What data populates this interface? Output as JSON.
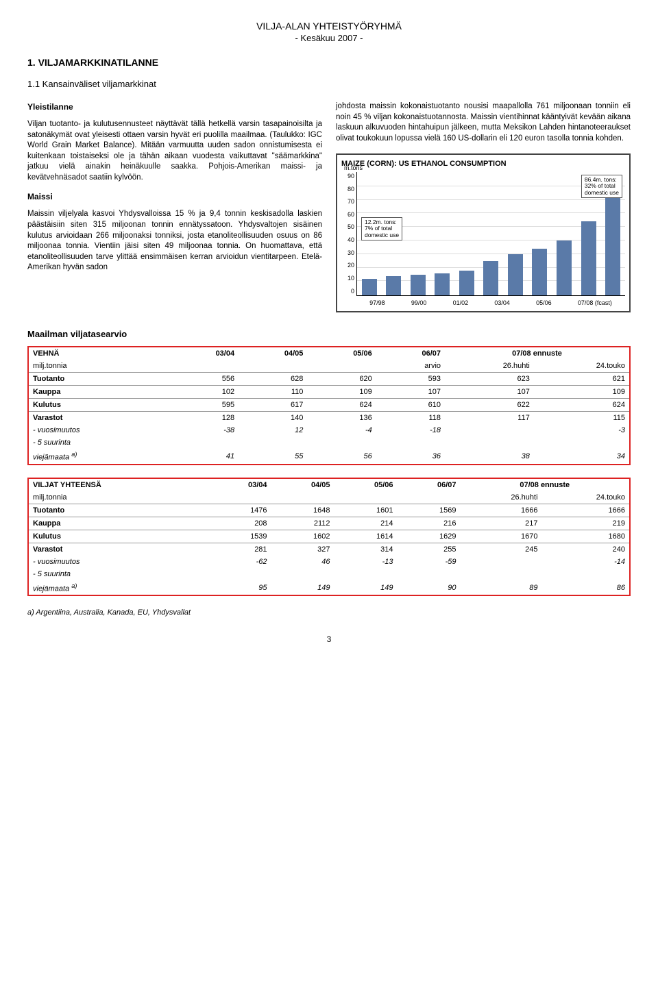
{
  "header": {
    "title": "VILJA-ALAN YHTEISTYÖRYHMÄ",
    "subtitle": "- Kesäkuu 2007 -"
  },
  "sec1": {
    "title": "1. VILJAMARKKINATILANNE",
    "sub": "1.1 Kansainväliset viljamarkkinat",
    "yl_h": "Yleistilanne",
    "p1": "Viljan tuotanto- ja kulutusennusteet näyttävät tällä hetkellä varsin tasapainoisilta ja satonäkymät ovat yleisesti ottaen varsin hyvät eri puolilla maa­ilmaa. (Taulukko: IGC World Grain Market Balance). Mitään varmuutta uuden sadon onnistumisesta ei kuitenkaan toistaiseksi ole ja tähän aikaan vuodesta vaikuttavat \"säämarkkina\" jatkuu vielä ainakin heinäkuulle saakka. Pohjois-Amerikan maissi- ja kevätvehnäsadot saatiin kylvöön.",
    "maissi_h": "Maissi",
    "p2": "Maissin viljelyala kasvoi Yhdysvalloissa 15 % ja 9,4 tonnin keskisadolla laskien päästäisiin siten 315 miljoonan tonnin ennätyssatoon. Yhdysvaltojen sisäinen kulutus arvioidaan 266 miljoonaksi tonniksi, josta etanoliteollisuuden osuus on 86 miljoonaa tonnia. Vientiin jäisi siten 49 miljoonaa tonnia. On huomattava, että etanoliteollisuuden tarve ylittää ensimmäisen kerran arvioidun vientitarpeen. Etelä-Amerikan hyvän sadon",
    "p3": "johdosta maissin kokonaistuotanto nousisi maapallolla 761 miljoonaan tonniin eli noin 45 % viljan kokonaistuotannosta. Maissin vientihinnat kääntyivät kevään aikana laskuun alkuvuoden hintahuipun jälkeen, mutta Meksikon Lahden hintanoteeraukset olivat toukokuun lopussa vielä 160 US-dollarin eli 120 euron tasolla tonnia kohden."
  },
  "chart": {
    "title": "MAIZE (CORN): US ETHANOL CONSUMPTION",
    "unit": "m.tons",
    "annot1_l1": "86.4m. tons:",
    "annot1_l2": "32% of total",
    "annot1_l3": "domestic use",
    "annot2_l1": "12.2m. tons:",
    "annot2_l2": "7% of total",
    "annot2_l3": "domestic use",
    "y": [
      "90",
      "80",
      "70",
      "60",
      "50",
      "40",
      "30",
      "20",
      "10",
      "0"
    ],
    "x": [
      "97/98",
      "99/00",
      "01/02",
      "03/04",
      "05/06",
      "07/08 (fcast)"
    ],
    "bar_color": "#5a7aa8",
    "values": [
      12,
      14,
      15,
      16,
      18,
      25,
      30,
      34,
      40,
      54,
      86
    ]
  },
  "tables_heading": "Maailman viljatasearvio",
  "t1": {
    "name": "VEHNÄ",
    "unit": "milj.tonnia",
    "cols": [
      "03/04",
      "04/05",
      "05/06",
      "06/07",
      "07/08 ennuste"
    ],
    "sub_arv": "arvio",
    "sub_h": "26.huhti",
    "sub_t": "24.touko",
    "rows": [
      {
        "l": "Tuotanto",
        "v": [
          "556",
          "628",
          "620",
          "593",
          "623",
          "621"
        ]
      },
      {
        "l": "Kauppa",
        "v": [
          "102",
          "110",
          "109",
          "107",
          "107",
          "109"
        ]
      },
      {
        "l": "Kulutus",
        "v": [
          "595",
          "617",
          "624",
          "610",
          "622",
          "624"
        ]
      },
      {
        "l": "Varastot",
        "v": [
          "128",
          "140",
          "136",
          "118",
          "117",
          "115"
        ]
      }
    ],
    "vm_l": " - vuosimuutos",
    "vm": [
      "-38",
      "12",
      "-4",
      "-18",
      "",
      "-3"
    ],
    "s5": " - 5 suurinta",
    "vj_l": "viejämaata ",
    "vj_sup": "a)",
    "vj": [
      "41",
      "55",
      "56",
      "36",
      "38",
      "34"
    ]
  },
  "t2": {
    "name": "VILJAT YHTEENSÄ",
    "unit": "milj.tonnia",
    "cols": [
      "03/04",
      "04/05",
      "05/06",
      "06/07",
      "07/08 ennuste"
    ],
    "sub_h": "26.huhti",
    "sub_t": "24.touko",
    "rows": [
      {
        "l": "Tuotanto",
        "v": [
          "1476",
          "1648",
          "1601",
          "1569",
          "1666",
          "1666"
        ]
      },
      {
        "l": "Kauppa",
        "v": [
          "208",
          "2112",
          "214",
          "216",
          "217",
          "219"
        ]
      },
      {
        "l": "Kulutus",
        "v": [
          "1539",
          "1602",
          "1614",
          "1629",
          "1670",
          "1680"
        ]
      },
      {
        "l": "Varastot",
        "v": [
          "281",
          "327",
          "314",
          "255",
          "245",
          "240"
        ]
      }
    ],
    "vm_l": " - vuosimuutos",
    "vm": [
      "-62",
      "46",
      "-13",
      "-59",
      "",
      "-14"
    ],
    "s5": " - 5 suurinta",
    "vj_l": "viejämaata ",
    "vj_sup": "a)",
    "vj": [
      "95",
      "149",
      "149",
      "90",
      "89",
      "86"
    ]
  },
  "footnote": "a) Argentiina, Australia, Kanada, EU, Yhdysvallat",
  "pagenum": "3"
}
